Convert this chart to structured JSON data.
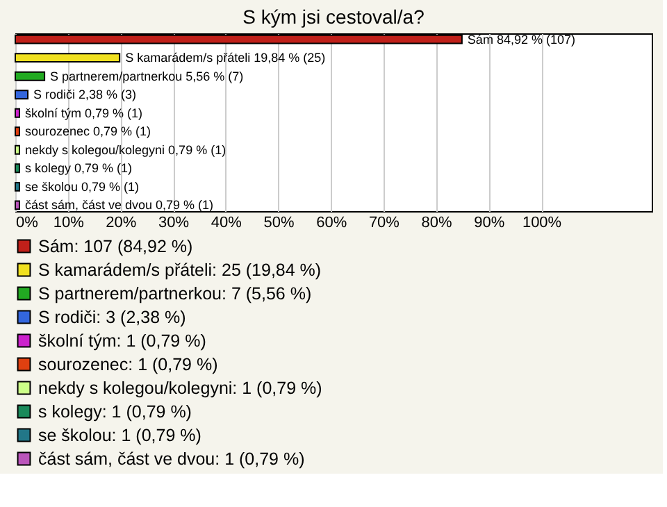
{
  "chart_data": {
    "type": "bar",
    "orientation": "horizontal",
    "title": "S kým jsi cestoval/a?",
    "categories": [
      null,
      null,
      null,
      null,
      null,
      null,
      null,
      null,
      null,
      null
    ],
    "series": [
      {
        "name": "Sám: 107 (84,92 %)",
        "color": "#c0201a",
        "values": [
          84.92,
          null,
          null,
          null,
          null,
          null,
          null,
          null,
          null,
          null
        ],
        "value_labels": [
          "Sám 84,92 % (107)",
          null,
          null,
          null,
          null,
          null,
          null,
          null,
          null,
          null
        ]
      },
      {
        "name": "S kamarádem/s přáteli: 25 (19,84 %)",
        "color": "#f0e020",
        "values": [
          null,
          19.84,
          null,
          null,
          null,
          null,
          null,
          null,
          null,
          null
        ],
        "value_labels": [
          null,
          "S kamarádem/s přáteli 19,84 % (25)",
          null,
          null,
          null,
          null,
          null,
          null,
          null,
          null
        ]
      },
      {
        "name": "S partnerem/partnerkou: 7 (5,56 %)",
        "color": "#22aa22",
        "values": [
          null,
          null,
          5.56,
          null,
          null,
          null,
          null,
          null,
          null,
          null
        ],
        "value_labels": [
          null,
          null,
          "S partnerem/partnerkou 5,56 % (7)",
          null,
          null,
          null,
          null,
          null,
          null,
          null
        ]
      },
      {
        "name": "S rodiči: 3 (2,38 %)",
        "color": "#3366dd",
        "values": [
          null,
          null,
          null,
          2.38,
          null,
          null,
          null,
          null,
          null,
          null
        ],
        "value_labels": [
          null,
          null,
          null,
          "S rodiči 2,38 % (3)",
          null,
          null,
          null,
          null,
          null,
          null
        ]
      },
      {
        "name": "školní tým: 1 (0,79 %)",
        "color": "#cc22cc",
        "values": [
          null,
          null,
          null,
          null,
          0.79,
          null,
          null,
          null,
          null,
          null
        ],
        "value_labels": [
          null,
          null,
          null,
          null,
          "školní tým 0,79 % (1)",
          null,
          null,
          null,
          null,
          null
        ]
      },
      {
        "name": "sourozenec: 1 (0,79 %)",
        "color": "#e04010",
        "values": [
          null,
          null,
          null,
          null,
          null,
          0.79,
          null,
          null,
          null,
          null
        ],
        "value_labels": [
          null,
          null,
          null,
          null,
          null,
          "sourozenec 0,79 % (1)",
          null,
          null,
          null,
          null
        ]
      },
      {
        "name": "nekdy s kolegou/kolegyni: 1 (0,79 %)",
        "color": "#ccff88",
        "values": [
          null,
          null,
          null,
          null,
          null,
          null,
          0.79,
          null,
          null,
          null
        ],
        "value_labels": [
          null,
          null,
          null,
          null,
          null,
          null,
          "nekdy s kolegou/kolegyni 0,79 % (1)",
          null,
          null,
          null
        ]
      },
      {
        "name": "s kolegy: 1 (0,79 %)",
        "color": "#1a8a5a",
        "values": [
          null,
          null,
          null,
          null,
          null,
          null,
          null,
          0.79,
          null,
          null
        ],
        "value_labels": [
          null,
          null,
          null,
          null,
          null,
          null,
          null,
          "s kolegy 0,79 % (1)",
          null,
          null
        ]
      },
      {
        "name": "se školou: 1 (0,79 %)",
        "color": "#227788",
        "values": [
          null,
          null,
          null,
          null,
          null,
          null,
          null,
          null,
          0.79,
          null
        ],
        "value_labels": [
          null,
          null,
          null,
          null,
          null,
          null,
          null,
          null,
          "se školou 0,79 % (1)",
          null
        ]
      },
      {
        "name": "část sám, část ve dvou: 1 (0,79 %)",
        "color": "#bb55bb",
        "values": [
          null,
          null,
          null,
          null,
          null,
          null,
          null,
          null,
          null,
          0.79
        ],
        "value_labels": [
          null,
          null,
          null,
          null,
          null,
          null,
          null,
          null,
          null,
          "část sám, část ve dvou 0,79 % (1)"
        ]
      }
    ],
    "xlim": [
      0,
      121
    ],
    "xticks": [
      {
        "value": 0,
        "label": "0%"
      },
      {
        "value": 10,
        "label": "10%"
      },
      {
        "value": 20,
        "label": "20%"
      },
      {
        "value": 30,
        "label": "30%"
      },
      {
        "value": 40,
        "label": "40%"
      },
      {
        "value": 50,
        "label": "50%"
      },
      {
        "value": 60,
        "label": "60%"
      },
      {
        "value": 70,
        "label": "70%"
      },
      {
        "value": 80,
        "label": "80%"
      },
      {
        "value": 90,
        "label": "90%"
      },
      {
        "value": 100,
        "label": "100%"
      }
    ],
    "grid": "x",
    "legend": "bottom left",
    "tick_labels": "x"
  }
}
